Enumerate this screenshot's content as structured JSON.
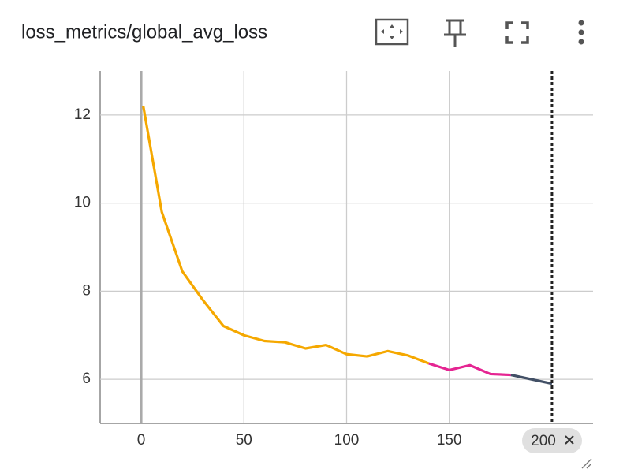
{
  "chart_data": {
    "type": "line",
    "title": "loss_metrics/global_avg_loss",
    "x": [
      1,
      10,
      20,
      30,
      40,
      50,
      60,
      70,
      80,
      90,
      100,
      110,
      120,
      130,
      140,
      150,
      160,
      170,
      180,
      190,
      200
    ],
    "series": [
      {
        "color": "#f5a800",
        "values": [
          12.2,
          9.8,
          8.45,
          7.8,
          7.21,
          7.0,
          6.87,
          6.84,
          6.7,
          6.78,
          6.57,
          6.52,
          6.64,
          6.54,
          6.36,
          null,
          null,
          null,
          null,
          null,
          null
        ]
      },
      {
        "color": "#e52592",
        "values": [
          null,
          null,
          null,
          null,
          null,
          null,
          null,
          null,
          null,
          null,
          null,
          null,
          null,
          null,
          6.36,
          6.21,
          6.32,
          6.12,
          6.1,
          null,
          null
        ]
      },
      {
        "color": "#425066",
        "values": [
          null,
          null,
          null,
          null,
          null,
          null,
          null,
          null,
          null,
          null,
          null,
          null,
          null,
          null,
          null,
          null,
          null,
          null,
          6.1,
          6.0,
          5.9
        ]
      }
    ],
    "xlim": [
      -20,
      220
    ],
    "xticks": [
      0,
      50,
      100,
      150
    ],
    "ylim": [
      5,
      13
    ],
    "yticks": [
      6,
      8,
      10,
      12
    ],
    "grid": true,
    "step_marker": 200
  }
}
